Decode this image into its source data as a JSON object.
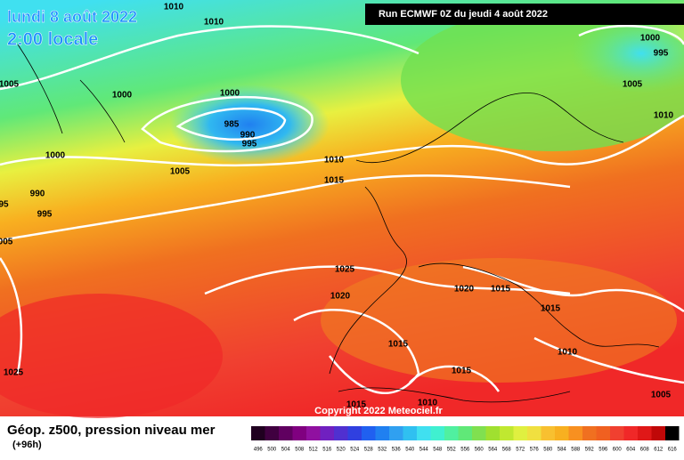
{
  "header": {
    "date_line": "lundi 8 août 2022",
    "time_line": "2:00 locale",
    "run": "Run ECMWF 0Z du jeudi 4 août 2022"
  },
  "isobar_labels": [
    "1010",
    "1010",
    "1000",
    "995",
    "1005",
    "1000",
    "1000",
    "985",
    "990",
    "995",
    "1005",
    "1010",
    "1000",
    "1005",
    "1010",
    "1015",
    "990",
    "995",
    "95",
    "005",
    "1025",
    "1020",
    "1020",
    "1015",
    "1015",
    "1015",
    "1010",
    "1025",
    "1015",
    "1010",
    "1015",
    "1005"
  ],
  "copyright": "Copyright 2022 Meteociel.fr",
  "footer": {
    "title": "Géop. z500, pression niveau mer",
    "subtitle": "(+96h)"
  },
  "scale_labels": [
    "496",
    "500",
    "504",
    "508",
    "512",
    "516",
    "520",
    "524",
    "528",
    "532",
    "536",
    "540",
    "544",
    "548",
    "552",
    "556",
    "560",
    "564",
    "568",
    "572",
    "576",
    "580",
    "584",
    "588",
    "592",
    "596",
    "600",
    "604",
    "608",
    "612",
    "616"
  ]
}
